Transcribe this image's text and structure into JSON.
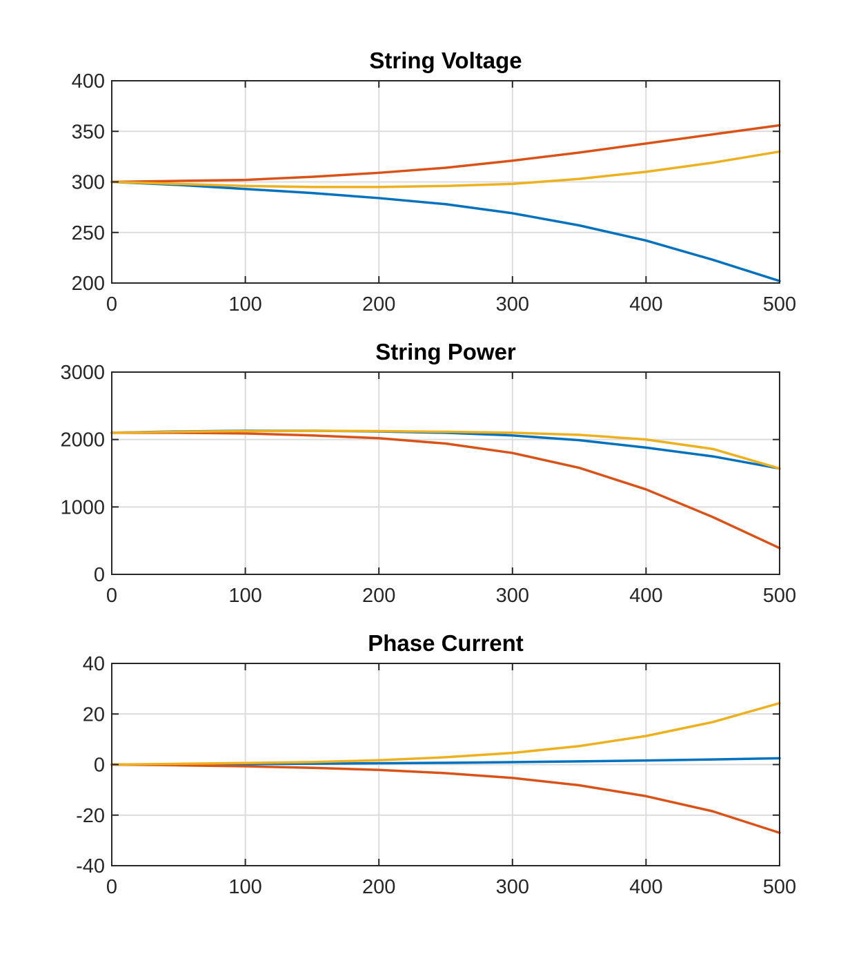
{
  "chart_data": [
    {
      "type": "line",
      "title": "String Voltage",
      "xlabel": "",
      "ylabel": "",
      "xlim": [
        0,
        500
      ],
      "ylim": [
        200,
        400
      ],
      "xticks": [
        0,
        100,
        200,
        300,
        400,
        500
      ],
      "yticks": [
        200,
        250,
        300,
        350,
        400
      ],
      "grid": true,
      "series": [
        {
          "color": "#0072BD",
          "x": [
            0,
            50,
            100,
            150,
            200,
            250,
            300,
            350,
            400,
            450,
            500
          ],
          "y": [
            300,
            297,
            293,
            289,
            284,
            278,
            269,
            257,
            242,
            223,
            202
          ]
        },
        {
          "color": "#D95319",
          "x": [
            0,
            50,
            100,
            150,
            200,
            250,
            300,
            350,
            400,
            450,
            500
          ],
          "y": [
            300,
            301,
            302,
            305,
            309,
            314,
            321,
            329,
            338,
            347,
            356
          ]
        },
        {
          "color": "#EDB120",
          "x": [
            0,
            50,
            100,
            150,
            200,
            250,
            300,
            350,
            400,
            450,
            500
          ],
          "y": [
            300,
            298,
            296,
            295,
            295,
            296,
            298,
            303,
            310,
            319,
            330
          ]
        }
      ]
    },
    {
      "type": "line",
      "title": "String Power",
      "xlabel": "",
      "ylabel": "",
      "xlim": [
        0,
        500
      ],
      "ylim": [
        0,
        3000
      ],
      "xticks": [
        0,
        100,
        200,
        300,
        400,
        500
      ],
      "yticks": [
        0,
        1000,
        2000,
        3000
      ],
      "grid": true,
      "series": [
        {
          "color": "#0072BD",
          "x": [
            0,
            50,
            100,
            150,
            200,
            250,
            300,
            350,
            400,
            450,
            500
          ],
          "y": [
            2100,
            2120,
            2130,
            2130,
            2120,
            2100,
            2060,
            1990,
            1880,
            1750,
            1570
          ]
        },
        {
          "color": "#D95319",
          "x": [
            0,
            50,
            100,
            150,
            200,
            250,
            300,
            350,
            400,
            450,
            500
          ],
          "y": [
            2100,
            2100,
            2090,
            2060,
            2020,
            1940,
            1800,
            1580,
            1260,
            850,
            390
          ]
        },
        {
          "color": "#EDB120",
          "x": [
            0,
            50,
            100,
            150,
            200,
            250,
            300,
            350,
            400,
            450,
            500
          ],
          "y": [
            2100,
            2115,
            2125,
            2130,
            2125,
            2115,
            2100,
            2070,
            2000,
            1860,
            1570
          ]
        }
      ]
    },
    {
      "type": "line",
      "title": "Phase Current",
      "xlabel": "",
      "ylabel": "",
      "xlim": [
        0,
        500
      ],
      "ylim": [
        -40,
        40
      ],
      "xticks": [
        0,
        100,
        200,
        300,
        400,
        500
      ],
      "yticks": [
        -40,
        -20,
        0,
        20,
        40
      ],
      "grid": true,
      "series": [
        {
          "color": "#0072BD",
          "x": [
            0,
            50,
            100,
            150,
            200,
            250,
            300,
            350,
            400,
            450,
            500
          ],
          "y": [
            0,
            0.1,
            0.2,
            0.35,
            0.5,
            0.7,
            0.95,
            1.25,
            1.6,
            2.0,
            2.5
          ]
        },
        {
          "color": "#D95319",
          "x": [
            0,
            50,
            100,
            150,
            200,
            250,
            300,
            350,
            400,
            450,
            500
          ],
          "y": [
            0,
            -0.3,
            -0.7,
            -1.3,
            -2.1,
            -3.4,
            -5.3,
            -8.2,
            -12.5,
            -18.5,
            -27
          ]
        },
        {
          "color": "#EDB120",
          "x": [
            0,
            50,
            100,
            150,
            200,
            250,
            300,
            350,
            400,
            450,
            500
          ],
          "y": [
            0,
            0.3,
            0.6,
            1.0,
            1.7,
            2.9,
            4.6,
            7.3,
            11.3,
            16.8,
            24.3
          ]
        }
      ]
    }
  ]
}
